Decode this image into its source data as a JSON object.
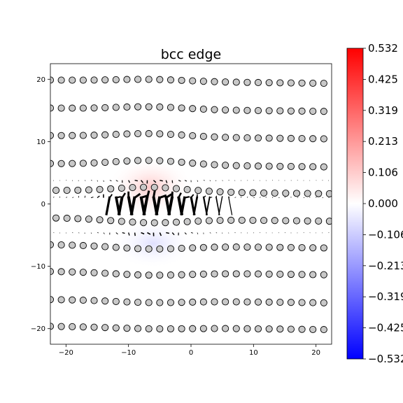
{
  "chart_data": {
    "type": "scatter",
    "title": "bcc edge",
    "xlabel": "",
    "ylabel": "",
    "xlim": [
      -22.5,
      22.5
    ],
    "ylim": [
      -22.5,
      22.5
    ],
    "x_ticks": [
      -20,
      -10,
      0,
      10,
      20
    ],
    "y_ticks": [
      -20,
      -10,
      0,
      10,
      20
    ],
    "x_tick_labels": [
      "−20",
      "−10",
      "0",
      "10",
      "20"
    ],
    "y_tick_labels": [
      "−20",
      "−10",
      "0",
      "10",
      "20"
    ],
    "grid": false,
    "atom_rows": [
      {
        "y": 19.6,
        "x_start": -22.5,
        "x_step": 1.75,
        "count": 26,
        "curve": 0.3
      },
      {
        "y": 15.1,
        "x_start": -22.5,
        "x_step": 1.75,
        "count": 26,
        "curve": 0.4
      },
      {
        "y": 10.7,
        "x_start": -22.5,
        "x_step": 1.75,
        "count": 26,
        "curve": 0.5
      },
      {
        "y": 6.2,
        "x_start": -22.5,
        "x_step": 1.75,
        "count": 26,
        "curve": 0.7
      },
      {
        "y": 1.9,
        "x_start": -21.6,
        "x_step": 1.75,
        "count": 26,
        "curve": 0.7
      },
      {
        "y": -2.5,
        "x_start": -21.6,
        "x_step": 1.75,
        "count": 26,
        "curve": -0.6
      },
      {
        "y": -6.8,
        "x_start": -22.5,
        "x_step": 1.75,
        "count": 26,
        "curve": -0.5
      },
      {
        "y": -11.1,
        "x_start": -22.5,
        "x_step": 1.75,
        "count": 26,
        "curve": -0.4
      },
      {
        "y": -15.6,
        "x_start": -22.5,
        "x_step": 1.75,
        "count": 26,
        "curve": -0.3
      },
      {
        "y": -19.9,
        "x_start": -22.5,
        "x_step": 1.75,
        "count": 26,
        "curve": -0.2
      }
    ],
    "core_position": [
      -6.5,
      -0.5
    ],
    "colorbar": {
      "min": -0.532,
      "max": 0.532,
      "colors": [
        "#0000ff",
        "#ffffff",
        "#ff0000"
      ],
      "tick_labels": [
        "0.532",
        "0.425",
        "0.319",
        "0.213",
        "0.106",
        "0.000",
        "−0.106",
        "−0.213",
        "−0.319",
        "−0.425",
        "−0.532"
      ]
    }
  }
}
